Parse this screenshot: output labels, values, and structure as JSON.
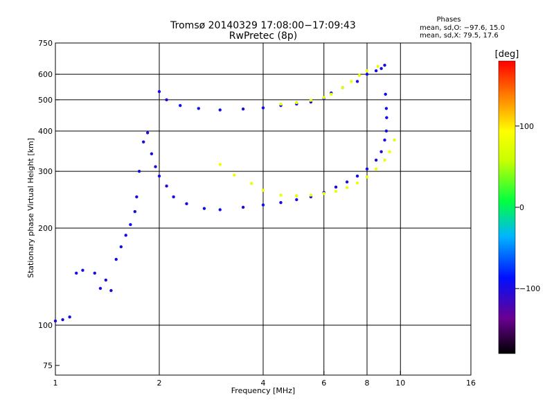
{
  "header": {
    "title_line1": "Tromsø 20140329 17:08:00−17:09:43",
    "title_line2": "RwPretec (8p)",
    "phases_title": "Phases",
    "phases_o": "mean, sd,O: −97.6, 15.0",
    "phases_x": "mean, sd,X:  79.5, 17.6"
  },
  "colorbar": {
    "unit": "[deg]",
    "ticks": [
      "100",
      "0",
      "−100"
    ],
    "tick_values": [
      100,
      0,
      -100
    ],
    "range": [
      -180,
      180
    ]
  },
  "colors": {
    "o_mode": "#2a3cf0",
    "x_mode": "#c8f000",
    "grid": "#000000"
  },
  "chart_data": {
    "type": "scatter",
    "title": "Tromsø 20140329 17:08:00−17:09:43",
    "subtitle": "RwPretec (8p)",
    "xlabel": "Frequency [MHz]",
    "ylabel": "Stationary phase Virtual Height [km]",
    "xscale": "log",
    "yscale": "log",
    "xlim": [
      1,
      16
    ],
    "ylim": [
      70,
      750
    ],
    "x_ticks": [
      1,
      2,
      4,
      6,
      8,
      10,
      16
    ],
    "x_tick_labels": [
      "1",
      "2",
      "4",
      "6",
      "8",
      "10",
      "16"
    ],
    "y_ticks": [
      75,
      100,
      200,
      300,
      400,
      500,
      600,
      750
    ],
    "y_tick_labels": [
      "75",
      "100",
      "200",
      "300",
      "400",
      "500",
      "600",
      "750"
    ],
    "x_grid": [
      2,
      4,
      6,
      8,
      10
    ],
    "y_grid": [
      100,
      200,
      300,
      400,
      500,
      600
    ],
    "color_scale": "phase [deg]",
    "series": [
      {
        "points": [
          [
            1.0,
            103
          ],
          [
            1.05,
            104
          ],
          [
            1.1,
            106
          ],
          [
            1.15,
            145
          ],
          [
            1.2,
            148
          ],
          [
            1.3,
            145
          ],
          [
            1.35,
            130
          ],
          [
            1.4,
            138
          ],
          [
            1.45,
            128
          ],
          [
            1.5,
            160
          ],
          [
            1.55,
            175
          ],
          [
            1.6,
            190
          ],
          [
            1.65,
            205
          ],
          [
            1.7,
            225
          ],
          [
            1.72,
            250
          ],
          [
            1.75,
            300
          ],
          [
            1.8,
            370
          ],
          [
            1.85,
            395
          ],
          [
            1.9,
            340
          ],
          [
            1.95,
            310
          ],
          [
            2.0,
            290
          ],
          [
            2.1,
            270
          ],
          [
            2.2,
            250
          ],
          [
            2.4,
            238
          ],
          [
            2.7,
            230
          ],
          [
            3.0,
            228
          ],
          [
            3.5,
            232
          ],
          [
            4.0,
            236
          ],
          [
            4.5,
            240
          ],
          [
            5.0,
            245
          ],
          [
            5.5,
            250
          ],
          [
            6.0,
            258
          ],
          [
            6.5,
            268
          ],
          [
            7.0,
            278
          ],
          [
            7.5,
            290
          ],
          [
            8.0,
            305
          ],
          [
            8.5,
            325
          ],
          [
            8.8,
            345
          ],
          [
            9.0,
            375
          ],
          [
            9.1,
            400
          ],
          [
            2.0,
            530
          ],
          [
            2.1,
            500
          ],
          [
            2.3,
            480
          ],
          [
            2.6,
            470
          ],
          [
            3.0,
            465
          ],
          [
            3.5,
            468
          ],
          [
            4.0,
            472
          ],
          [
            4.5,
            480
          ],
          [
            5.0,
            485
          ],
          [
            5.5,
            492
          ],
          [
            6.0,
            505
          ],
          [
            6.3,
            525
          ],
          [
            6.8,
            545
          ],
          [
            7.5,
            570
          ],
          [
            8.0,
            600
          ],
          [
            8.5,
            615
          ],
          [
            8.8,
            625
          ],
          [
            9.0,
            640
          ],
          [
            9.05,
            520
          ],
          [
            9.1,
            470
          ],
          [
            9.12,
            440
          ]
        ],
        "phase": -98
      },
      {
        "points": [
          [
            3.0,
            315
          ],
          [
            3.3,
            292
          ],
          [
            3.7,
            275
          ],
          [
            4.0,
            262
          ],
          [
            4.5,
            253
          ],
          [
            5.0,
            252
          ],
          [
            5.5,
            253
          ],
          [
            6.0,
            256
          ],
          [
            6.5,
            260
          ],
          [
            7.0,
            267
          ],
          [
            7.5,
            276
          ],
          [
            8.0,
            288
          ],
          [
            8.5,
            305
          ],
          [
            9.0,
            325
          ],
          [
            9.3,
            345
          ],
          [
            9.6,
            375
          ],
          [
            4.5,
            485
          ],
          [
            5.0,
            490
          ],
          [
            5.5,
            498
          ],
          [
            6.0,
            508
          ],
          [
            6.3,
            520
          ],
          [
            6.8,
            545
          ],
          [
            7.2,
            570
          ],
          [
            7.6,
            595
          ],
          [
            8.0,
            615
          ],
          [
            8.6,
            635
          ]
        ],
        "phase": 80
      }
    ]
  }
}
